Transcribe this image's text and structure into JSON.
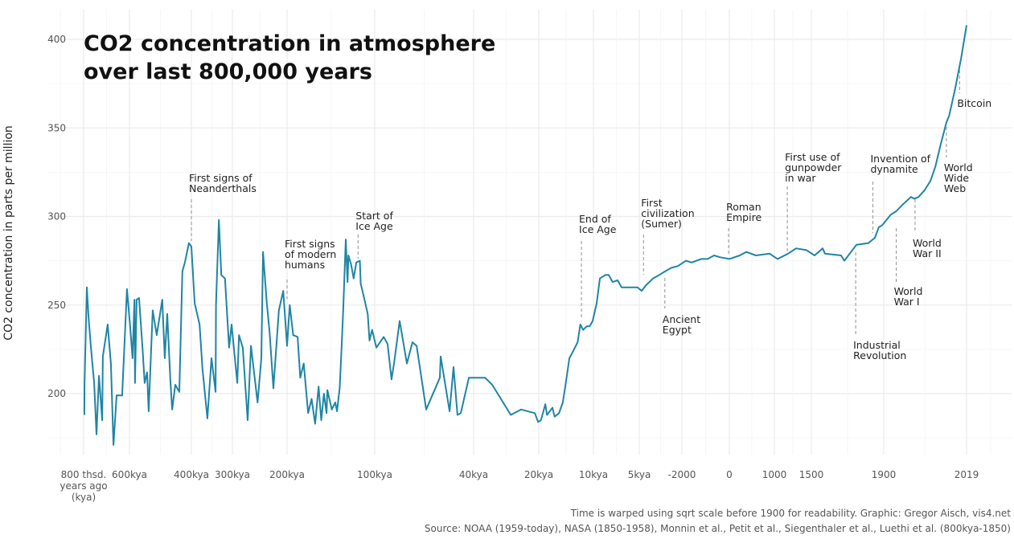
{
  "chart_data": {
    "type": "line",
    "title": [
      "CO2 concentration in atmosphere",
      "over last 800,000 years"
    ],
    "ylabel": "CO2 concentration in parts per million",
    "xlabel": "",
    "ylim": [
      166,
      415
    ],
    "y_ticks": [
      "200",
      "250",
      "300",
      "350",
      "400"
    ],
    "x_scale": "sqrt-warped before 1900",
    "grid": true,
    "line_color": "#1f85a3",
    "x_ticks": [
      {
        "year": -800000,
        "label": [
          "800 thsd.",
          "years ago",
          "(kya)"
        ]
      },
      {
        "year": -600000,
        "label": [
          "600kya"
        ]
      },
      {
        "year": -400000,
        "label": [
          "400kya"
        ]
      },
      {
        "year": -300000,
        "label": [
          "300kya"
        ]
      },
      {
        "year": -200000,
        "label": [
          "200kya"
        ]
      },
      {
        "year": -100000,
        "label": [
          "100kya"
        ]
      },
      {
        "year": -40000,
        "label": [
          "40kya"
        ]
      },
      {
        "year": -20000,
        "label": [
          "20kya"
        ]
      },
      {
        "year": -10000,
        "label": [
          "10kya"
        ]
      },
      {
        "year": -5000,
        "label": [
          "5kya"
        ]
      },
      {
        "year": -2000,
        "label": [
          "-2000"
        ]
      },
      {
        "year": 0,
        "label": [
          "0"
        ]
      },
      {
        "year": 1000,
        "label": [
          "1000"
        ]
      },
      {
        "year": 1500,
        "label": [
          "1500"
        ]
      },
      {
        "year": 1900,
        "label": [
          "1900"
        ]
      },
      {
        "year": 2019,
        "label": [
          "2019"
        ]
      }
    ],
    "series": [
      {
        "points": [
          [
            -797000,
            188
          ],
          [
            -796000,
            205
          ],
          [
            -786000,
            260
          ],
          [
            -779000,
            244
          ],
          [
            -768000,
            226
          ],
          [
            -754000,
            206
          ],
          [
            -744000,
            177
          ],
          [
            -733000,
            210
          ],
          [
            -719000,
            185
          ],
          [
            -716000,
            221
          ],
          [
            -695000,
            239
          ],
          [
            -681000,
            217
          ],
          [
            -670000,
            171
          ],
          [
            -656000,
            199
          ],
          [
            -632000,
            199
          ],
          [
            -611000,
            259
          ],
          [
            -597000,
            236
          ],
          [
            -590000,
            220
          ],
          [
            -584000,
            253
          ],
          [
            -582000,
            206
          ],
          [
            -577000,
            253
          ],
          [
            -569000,
            254
          ],
          [
            -558000,
            226
          ],
          [
            -551000,
            206
          ],
          [
            -543000,
            212
          ],
          [
            -538000,
            190
          ],
          [
            -525000,
            247
          ],
          [
            -512000,
            233
          ],
          [
            -494000,
            253
          ],
          [
            -486000,
            220
          ],
          [
            -478000,
            245
          ],
          [
            -468000,
            208
          ],
          [
            -462000,
            191
          ],
          [
            -452000,
            205
          ],
          [
            -439000,
            201
          ],
          [
            -429000,
            269
          ],
          [
            -421000,
            274
          ],
          [
            -408000,
            285
          ],
          [
            -400000,
            283
          ],
          [
            -392000,
            251
          ],
          [
            -380000,
            239
          ],
          [
            -373000,
            214
          ],
          [
            -361000,
            186
          ],
          [
            -351000,
            220
          ],
          [
            -341000,
            201
          ],
          [
            -340000,
            250
          ],
          [
            -333000,
            298
          ],
          [
            -327000,
            267
          ],
          [
            -318000,
            265
          ],
          [
            -308000,
            226
          ],
          [
            -302000,
            239
          ],
          [
            -291000,
            206
          ],
          [
            -288000,
            233
          ],
          [
            -281000,
            226
          ],
          [
            -272000,
            185
          ],
          [
            -266000,
            227
          ],
          [
            -254000,
            195
          ],
          [
            -247000,
            220
          ],
          [
            -244000,
            280
          ],
          [
            -237000,
            251
          ],
          [
            -232000,
            235
          ],
          [
            -225000,
            203
          ],
          [
            -215000,
            247
          ],
          [
            -207000,
            258
          ],
          [
            -200000,
            227
          ],
          [
            -197000,
            250
          ],
          [
            -193000,
            233
          ],
          [
            -188000,
            232
          ],
          [
            -185000,
            209
          ],
          [
            -181000,
            217
          ],
          [
            -176000,
            189
          ],
          [
            -172000,
            197
          ],
          [
            -168000,
            183
          ],
          [
            -164000,
            204
          ],
          [
            -161000,
            185
          ],
          [
            -158000,
            200
          ],
          [
            -155000,
            189
          ],
          [
            -154000,
            202
          ],
          [
            -149000,
            191
          ],
          [
            -145000,
            195
          ],
          [
            -143000,
            190
          ],
          [
            -140000,
            203
          ],
          [
            -138000,
            224
          ],
          [
            -136000,
            247
          ],
          [
            -133000,
            287
          ],
          [
            -131000,
            263
          ],
          [
            -130000,
            278
          ],
          [
            -127000,
            273
          ],
          [
            -124000,
            265
          ],
          [
            -121000,
            274
          ],
          [
            -117000,
            275
          ],
          [
            -116000,
            262
          ],
          [
            -113000,
            256
          ],
          [
            -108000,
            245
          ],
          [
            -106000,
            230
          ],
          [
            -103000,
            236
          ],
          [
            -99000,
            226
          ],
          [
            -94600,
            232
          ],
          [
            -92200,
            228
          ],
          [
            -89800,
            208
          ],
          [
            -88300,
            217
          ],
          [
            -84900,
            241
          ],
          [
            -80500,
            217
          ],
          [
            -77100,
            229
          ],
          [
            -74600,
            227
          ],
          [
            -68800,
            191
          ],
          [
            -60500,
            209
          ],
          [
            -60000,
            221
          ],
          [
            -54600,
            190
          ],
          [
            -52200,
            215
          ],
          [
            -49800,
            188
          ],
          [
            -47800,
            189
          ],
          [
            -42900,
            209
          ],
          [
            -36500,
            209
          ],
          [
            -34300,
            205
          ],
          [
            -28600,
            188
          ],
          [
            -25400,
            191
          ],
          [
            -21200,
            189
          ],
          [
            -20200,
            184
          ],
          [
            -19600,
            185
          ],
          [
            -18800,
            194
          ],
          [
            -18500,
            188
          ],
          [
            -17500,
            192
          ],
          [
            -17100,
            187
          ],
          [
            -16300,
            189
          ],
          [
            -15600,
            195
          ],
          [
            -15100,
            205
          ],
          [
            -14400,
            220
          ],
          [
            -13700,
            224
          ],
          [
            -12900,
            229
          ],
          [
            -12400,
            239
          ],
          [
            -11900,
            236
          ],
          [
            -11200,
            238
          ],
          [
            -10700,
            238
          ],
          [
            -10150,
            241
          ],
          [
            -9650,
            251
          ],
          [
            -9300,
            265
          ],
          [
            -8700,
            267
          ],
          [
            -8330,
            267
          ],
          [
            -7900,
            263
          ],
          [
            -7370,
            264
          ],
          [
            -6930,
            260
          ],
          [
            -6320,
            260
          ],
          [
            -5700,
            260
          ],
          [
            -5180,
            260
          ],
          [
            -4830,
            258
          ],
          [
            -4550,
            261
          ],
          [
            -4040,
            265
          ],
          [
            -3590,
            267
          ],
          [
            -3190,
            269
          ],
          [
            -2740,
            271
          ],
          [
            -2280,
            272
          ],
          [
            -1830,
            275
          ],
          [
            -1590,
            274
          ],
          [
            -1190,
            276
          ],
          [
            -920,
            276
          ],
          [
            -640,
            278
          ],
          [
            -400,
            277
          ],
          [
            0,
            276
          ],
          [
            233,
            278
          ],
          [
            376,
            280
          ],
          [
            590,
            278
          ],
          [
            895,
            279
          ],
          [
            1044,
            276
          ],
          [
            1185,
            279
          ],
          [
            1294,
            282
          ],
          [
            1435,
            281
          ],
          [
            1518,
            278
          ],
          [
            1562,
            282
          ],
          [
            1575,
            279
          ],
          [
            1664,
            278
          ],
          [
            1682,
            275
          ],
          [
            1749,
            284
          ],
          [
            1815,
            285
          ],
          [
            1851,
            288
          ],
          [
            1873,
            294
          ],
          [
            1891,
            295
          ],
          [
            1910,
            301
          ],
          [
            1918,
            303
          ],
          [
            1928,
            307
          ],
          [
            1939,
            311
          ],
          [
            1944,
            310
          ],
          [
            1950,
            311
          ],
          [
            1959,
            315
          ],
          [
            1967,
            320
          ],
          [
            1974,
            328
          ],
          [
            1982,
            341
          ],
          [
            1990,
            353
          ],
          [
            1994,
            357
          ],
          [
            2002,
            371
          ],
          [
            2011,
            389
          ],
          [
            2019,
            408
          ]
        ]
      }
    ],
    "annotations": [
      {
        "year": -400000,
        "label": [
          "First signs of",
          "Neanderthals"
        ],
        "side": "above"
      },
      {
        "year": -200000,
        "label": [
          "First signs",
          "of modern",
          "humans"
        ],
        "side": "above"
      },
      {
        "year": -119000,
        "label": [
          "Start of",
          "Ice Age"
        ],
        "side": "above"
      },
      {
        "year": -12200,
        "label": [
          "End of",
          "Ice Age"
        ],
        "side": "above"
      },
      {
        "year": -4700,
        "label": [
          "First",
          "civilization",
          "(Sumer)"
        ],
        "side": "above"
      },
      {
        "year": -3200,
        "label": [
          "Ancient",
          "Egypt"
        ],
        "side": "below"
      },
      {
        "year": -30,
        "label": [
          "Roman",
          "Empire"
        ],
        "side": "above"
      },
      {
        "year": 1175,
        "label": [
          "First use of",
          "gunpowder",
          "in war"
        ],
        "side": "above"
      },
      {
        "year": 1745,
        "label": [
          "Industrial",
          "Revolution"
        ],
        "side": "below"
      },
      {
        "year": 1840,
        "label": [
          "Invention of",
          "dynamite"
        ],
        "side": "above"
      },
      {
        "year": 1918,
        "label": [
          "World",
          "War I"
        ],
        "side": "below"
      },
      {
        "year": 1945,
        "label": [
          "World",
          "War II"
        ],
        "side": "below"
      },
      {
        "year": 1990,
        "label": [
          "World",
          "Wide",
          "Web"
        ],
        "side": "below"
      },
      {
        "year": 2009,
        "label": [
          "Bitcoin"
        ],
        "side": "below"
      }
    ],
    "caption": [
      "Time is warped using sqrt scale before 1900 for readability. Graphic: Gregor Aisch, vis4.net",
      "Source: NOAA (1959-today), NASA (1850-1958), Monnin et al., Petit et al., Siegenthaler et al., Luethi et al. (800kya-1850)"
    ]
  }
}
